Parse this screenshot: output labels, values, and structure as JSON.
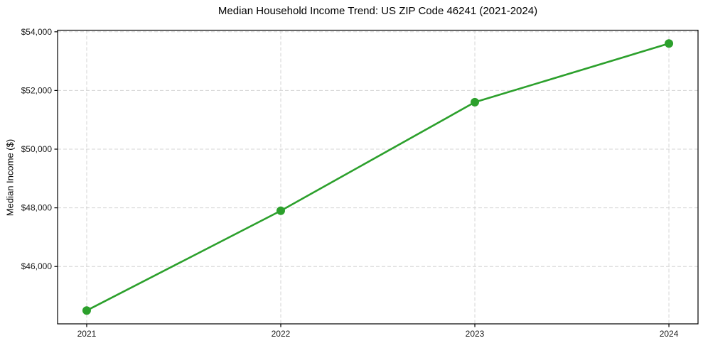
{
  "chart_data": {
    "type": "line",
    "title": "Median Household Income Trend: US ZIP Code 46241 (2021-2024)",
    "xlabel": "",
    "ylabel": "Median Income ($)",
    "x": [
      2021,
      2022,
      2023,
      2024
    ],
    "values": [
      44500,
      47900,
      51600,
      53600
    ],
    "xticks": [
      2021,
      2022,
      2023,
      2024
    ],
    "xtick_labels": [
      "2021",
      "2022",
      "2023",
      "2024"
    ],
    "yticks": [
      46000,
      48000,
      50000,
      52000,
      54000
    ],
    "ytick_labels": [
      "$46,000",
      "$48,000",
      "$50,000",
      "$52,000",
      "$54,000"
    ],
    "xlim": [
      2020.85,
      2024.15
    ],
    "ylim": [
      44045,
      54055
    ],
    "grid": true,
    "grid_style": "dashed",
    "legend": false,
    "line_color": "#2ca02c",
    "marker": "circle",
    "grid_color": "#d4d4d4",
    "spine_color": "#000000",
    "text_color": "#1a1a1a",
    "background_color": "#ffffff"
  }
}
